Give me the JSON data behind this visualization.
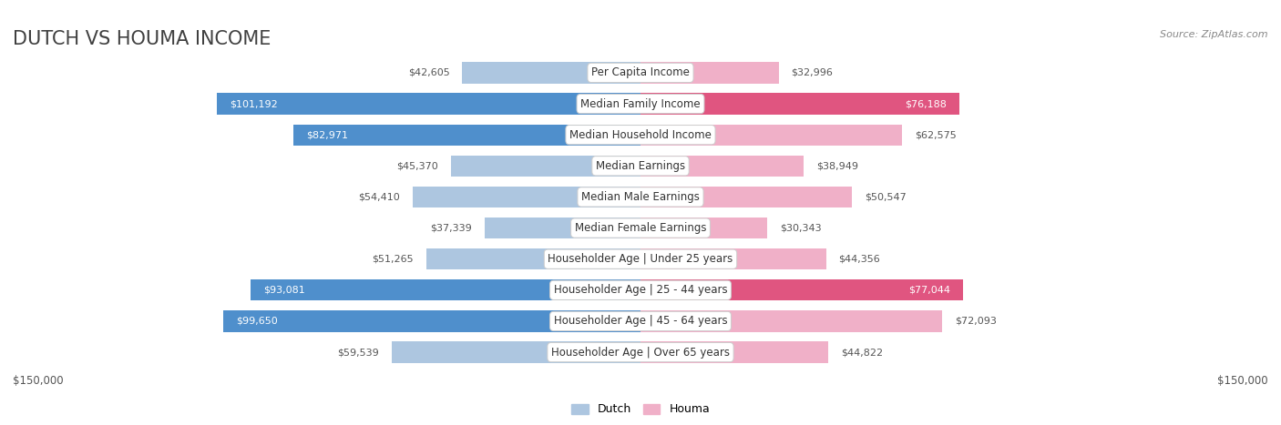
{
  "title": "DUTCH VS HOUMA INCOME",
  "source": "Source: ZipAtlas.com",
  "categories": [
    "Per Capita Income",
    "Median Family Income",
    "Median Household Income",
    "Median Earnings",
    "Median Male Earnings",
    "Median Female Earnings",
    "Householder Age | Under 25 years",
    "Householder Age | 25 - 44 years",
    "Householder Age | 45 - 64 years",
    "Householder Age | Over 65 years"
  ],
  "dutch_values": [
    42605,
    101192,
    82971,
    45370,
    54410,
    37339,
    51265,
    93081,
    99650,
    59539
  ],
  "houma_values": [
    32996,
    76188,
    62575,
    38949,
    50547,
    30343,
    44356,
    77044,
    72093,
    44822
  ],
  "max_val": 150000,
  "dutch_color_full": "#4f8fcc",
  "dutch_color_light": "#adc6e0",
  "houma_color_full": "#e05580",
  "houma_color_light": "#f0b0c8",
  "full_threshold": 75000,
  "bg_color": "#ffffff",
  "row_bg_color": "#f5f5f5",
  "row_border_color": "#d0d0d0",
  "legend_dutch": "Dutch",
  "legend_houma": "Houma",
  "xlabel_left": "$150,000",
  "xlabel_right": "$150,000",
  "title_fontsize": 15,
  "label_fontsize": 8.5,
  "value_fontsize": 8,
  "title_color": "#404040",
  "source_color": "#888888",
  "value_color_dark": "#555555",
  "value_color_light": "#ffffff"
}
